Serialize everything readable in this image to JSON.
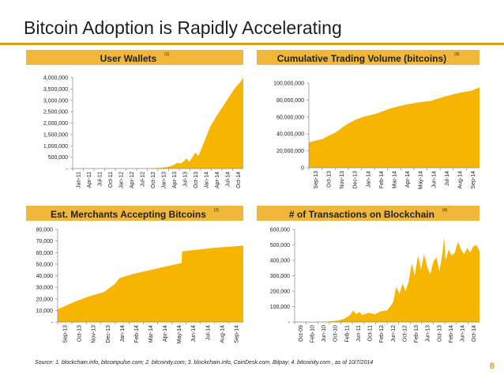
{
  "slide": {
    "title": "Bitcoin Adoption is Rapidly Accelerating",
    "source": "Source:  1. blockchain.info, bitcoinpulse.com;  2. bitcoinity.com;  3. blockchain.info, CoinDesk.com, Bitpay;  4. bitcoinity.com , as of 10/7/2014",
    "page_number": "8",
    "accent_color": "#f0b73a",
    "rule_color": "#d4a11e"
  },
  "panels": [
    {
      "title": "User Wallets",
      "note": "(1)"
    },
    {
      "title": "Cumulative Trading Volume (bitcoins)",
      "note": "(3)"
    },
    {
      "title": "Est. Merchants Accepting Bitcoins",
      "note": "(2)"
    },
    {
      "title": "# of Transactions on Blockchain",
      "note": "(4)"
    }
  ],
  "chart_data": [
    {
      "type": "area",
      "title": "User Wallets",
      "color": "#f7b500",
      "ylim": [
        0,
        4000000
      ],
      "y_ticks": [
        0,
        500000,
        1000000,
        1500000,
        2000000,
        2500000,
        3000000,
        3500000,
        4000000
      ],
      "y_tick_labels": [
        "-",
        "500,000",
        "1,000,000",
        "1,500,000",
        "2,000,000",
        "2,500,000",
        "3,000,000",
        "3,500,000",
        "4,000,000"
      ],
      "x_labels": [
        "Jan-11",
        "Apr-11",
        "Jul-11",
        "Oct-11",
        "Jan-12",
        "Apr-12",
        "Jul-12",
        "Oct-12",
        "Jan-13",
        "Apr-13",
        "Jul-13",
        "Oct-13",
        "Jan-14",
        "Apr-14",
        "Jul-14",
        "Oct-14"
      ],
      "x": [
        0,
        2,
        4,
        6,
        8,
        10,
        12,
        14,
        16,
        18,
        20,
        24,
        26,
        28,
        30,
        31,
        32,
        33,
        34,
        35,
        36,
        37,
        38,
        39,
        40,
        41,
        42,
        44,
        46,
        48,
        50,
        52,
        54,
        56,
        57
      ],
      "y": [
        0,
        0,
        0,
        0,
        0,
        0,
        0,
        0,
        0,
        0,
        0,
        5000,
        10000,
        20000,
        40000,
        60000,
        80000,
        120000,
        180000,
        250000,
        220000,
        300000,
        450000,
        300000,
        500000,
        700000,
        550000,
        1200000,
        1850000,
        2300000,
        2700000,
        3100000,
        3500000,
        3800000,
        4000000
      ],
      "xlim": [
        0,
        57
      ]
    },
    {
      "type": "area",
      "title": "Cumulative Trading Volume (bitcoins)",
      "color": "#f7b500",
      "ylim": [
        0,
        100000000
      ],
      "y_ticks": [
        0,
        20000000,
        40000000,
        60000000,
        80000000,
        100000000
      ],
      "y_tick_labels": [
        "0",
        "20,000,000",
        "40,000,000",
        "60,000,000",
        "80,000,000",
        "100,000,000"
      ],
      "x_labels": [
        "Sep-13",
        "Oct-13",
        "Nov-13",
        "Dec-13",
        "Jan-14",
        "Feb-14",
        "Mar-14",
        "Apr-14",
        "May-14",
        "Jun-14",
        "Jul-14",
        "Aug-14",
        "Sep-14"
      ],
      "x": [
        0,
        0.5,
        1,
        1.5,
        2,
        2.5,
        3,
        3.5,
        4,
        5,
        6,
        7,
        8,
        9,
        10,
        11,
        12,
        12.6
      ],
      "y": [
        30000000,
        32000000,
        34000000,
        38000000,
        42000000,
        48000000,
        53000000,
        57000000,
        60000000,
        64000000,
        70000000,
        74000000,
        77000000,
        79000000,
        84000000,
        88000000,
        91000000,
        95000000
      ],
      "xlim": [
        0,
        12.6
      ]
    },
    {
      "type": "area",
      "title": "Est. Merchants Accepting Bitcoins",
      "color": "#f7b500",
      "ylim": [
        0,
        80000
      ],
      "y_ticks": [
        0,
        10000,
        20000,
        30000,
        40000,
        50000,
        60000,
        70000,
        80000
      ],
      "y_tick_labels": [
        "-",
        "10,000",
        "20,000",
        "30,000",
        "40,000",
        "50,000",
        "60,000",
        "70,000",
        "80,000"
      ],
      "x_labels": [
        "Sep-13",
        "Oct-13",
        "Nov-13",
        "Dec-13",
        "Jan-14",
        "Feb-14",
        "Mar-14",
        "Apr-14",
        "May-14",
        "Jun-14",
        "Jul-14",
        "Aug-14",
        "Sep-14"
      ],
      "x": [
        0,
        1,
        2,
        3,
        3.7,
        4,
        5,
        6,
        7,
        8,
        8.05,
        9,
        10,
        11,
        12
      ],
      "y": [
        11000,
        17000,
        22000,
        26000,
        33000,
        38000,
        42000,
        45000,
        48000,
        51000,
        61000,
        62500,
        64000,
        65000,
        66000
      ],
      "xlim": [
        0,
        12
      ]
    },
    {
      "type": "area",
      "title": "# of Transactions on Blockchain",
      "color": "#f7b500",
      "ylim": [
        0,
        600000
      ],
      "y_ticks": [
        0,
        100000,
        200000,
        300000,
        400000,
        500000,
        600000
      ],
      "y_tick_labels": [
        "-",
        "100,000",
        "200,000",
        "300,000",
        "400,000",
        "500,000",
        "600,000"
      ],
      "x_labels": [
        "Oct-09",
        "Feb-10",
        "Jun-10",
        "Oct-10",
        "Feb-11",
        "Jun-11",
        "Oct-11",
        "Feb-12",
        "Jun-12",
        "Oct-12",
        "Feb-13",
        "Jun-13",
        "Oct-13",
        "Feb-14",
        "Jun-14",
        "Oct-14"
      ],
      "x": [
        0,
        2,
        4,
        6,
        8,
        10,
        12,
        14,
        16,
        18,
        19,
        20,
        21,
        22,
        24,
        26,
        28,
        30,
        31,
        32,
        33,
        34,
        35,
        36,
        37,
        38,
        39,
        40,
        41,
        42,
        43,
        44,
        45,
        46,
        47,
        48,
        48.5,
        49,
        50,
        51,
        52,
        53,
        54,
        55,
        56,
        57,
        58,
        59,
        60
      ],
      "y": [
        0,
        0,
        0,
        0,
        1000,
        2000,
        5000,
        10000,
        20000,
        45000,
        75000,
        50000,
        65000,
        45000,
        60000,
        50000,
        70000,
        75000,
        100000,
        130000,
        230000,
        180000,
        250000,
        200000,
        260000,
        380000,
        300000,
        430000,
        340000,
        440000,
        360000,
        310000,
        390000,
        420000,
        330000,
        450000,
        550000,
        400000,
        470000,
        430000,
        450000,
        520000,
        470000,
        440000,
        480000,
        450000,
        490000,
        500000,
        460000
      ],
      "xlim": [
        0,
        60
      ]
    }
  ]
}
